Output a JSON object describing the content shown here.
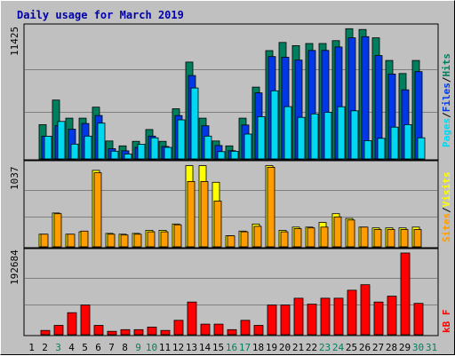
{
  "title": "Daily usage for March 2019",
  "colors": {
    "background": "#c0c0c0",
    "plot_background": "#c0c0c0",
    "hits": "#007f5f",
    "files": "#0038e8",
    "pages": "#00d7f0",
    "visits": "#ff9c00",
    "sites": "#ffff00",
    "kbytes": "#ff0000",
    "weekend_day": "#007f5f",
    "weekday": "#000000"
  },
  "chart_data": [
    {
      "type": "bar",
      "panel": "hits-files-pages",
      "max_label": "11425",
      "ymax": 11425,
      "categories": [
        "1",
        "2",
        "3",
        "4",
        "5",
        "6",
        "7",
        "8",
        "9",
        "10",
        "11",
        "12",
        "13",
        "14",
        "15",
        "16",
        "17",
        "18",
        "19",
        "20",
        "21",
        "22",
        "23",
        "24",
        "25",
        "26",
        "27",
        "28",
        "29",
        "30",
        "31"
      ],
      "series": [
        {
          "name": "Hits",
          "values": [
            0,
            3000,
            5150,
            3570,
            3570,
            4530,
            1570,
            1140,
            1540,
            2570,
            1540,
            4390,
            8480,
            3570,
            1570,
            1140,
            3570,
            6290,
            9480,
            10200,
            9920,
            10100,
            10100,
            10350,
            11400,
            11330,
            10600,
            8620,
            7480,
            8620,
            0
          ]
        },
        {
          "name": "Files",
          "values": [
            0,
            1990,
            2900,
            2600,
            3100,
            3800,
            890,
            710,
            1010,
            2000,
            1090,
            3790,
            7300,
            2900,
            1170,
            720,
            2970,
            5780,
            8960,
            8900,
            8650,
            9500,
            9500,
            9800,
            10600,
            10700,
            9050,
            7430,
            6050,
            7640,
            0
          ]
        },
        {
          "name": "Pages",
          "values": [
            0,
            1990,
            3280,
            1300,
            2000,
            3130,
            680,
            430,
            1280,
            1850,
            1010,
            3420,
            6210,
            2000,
            640,
            670,
            2180,
            3700,
            5960,
            4580,
            3640,
            3940,
            4080,
            4570,
            4210,
            1600,
            1800,
            2780,
            3000,
            1850,
            0
          ]
        }
      ],
      "legend": [
        "Pages",
        "Files",
        "Hits"
      ]
    },
    {
      "type": "bar",
      "panel": "visits-sites",
      "max_label": "1037",
      "ymax": 1037,
      "categories": [
        "1",
        "2",
        "3",
        "4",
        "5",
        "6",
        "7",
        "8",
        "9",
        "10",
        "11",
        "12",
        "13",
        "14",
        "15",
        "16",
        "17",
        "18",
        "19",
        "20",
        "21",
        "22",
        "23",
        "24",
        "25",
        "26",
        "27",
        "28",
        "29",
        "30",
        "31"
      ],
      "series": [
        {
          "name": "Visits",
          "values": [
            0,
            160,
            420,
            160,
            200,
            940,
            160,
            150,
            160,
            190,
            190,
            280,
            830,
            830,
            580,
            140,
            190,
            260,
            1010,
            190,
            230,
            240,
            250,
            380,
            340,
            250,
            220,
            220,
            220,
            220,
            0
          ]
        },
        {
          "name": "Sites",
          "values": [
            0,
            160,
            430,
            160,
            190,
            970,
            170,
            160,
            170,
            210,
            210,
            290,
            1030,
            1030,
            820,
            140,
            200,
            290,
            1030,
            210,
            250,
            250,
            310,
            420,
            360,
            250,
            240,
            240,
            240,
            250,
            0
          ]
        }
      ],
      "legend": [
        "Sites",
        "Visits"
      ]
    },
    {
      "type": "bar",
      "panel": "kbytes",
      "max_label": "192684",
      "ymax": 192684,
      "categories": [
        "1",
        "2",
        "3",
        "4",
        "5",
        "6",
        "7",
        "8",
        "9",
        "10",
        "11",
        "12",
        "13",
        "14",
        "15",
        "16",
        "17",
        "18",
        "19",
        "20",
        "21",
        "22",
        "23",
        "24",
        "25",
        "26",
        "27",
        "28",
        "29",
        "30",
        "31"
      ],
      "series": [
        {
          "name": "kB F",
          "values": [
            0,
            10000,
            22000,
            52000,
            70000,
            22000,
            8000,
            12000,
            12000,
            18000,
            10000,
            34000,
            77000,
            25000,
            25000,
            12000,
            34000,
            22000,
            70000,
            70000,
            86000,
            72000,
            86000,
            86000,
            105000,
            118000,
            77000,
            91000,
            192684,
            74000,
            0
          ]
        }
      ],
      "legend": [
        "kB F"
      ]
    }
  ],
  "x_axis": {
    "days": [
      "1",
      "2",
      "3",
      "4",
      "5",
      "6",
      "7",
      "8",
      "9",
      "10",
      "11",
      "12",
      "13",
      "14",
      "15",
      "16",
      "17",
      "18",
      "19",
      "20",
      "21",
      "22",
      "23",
      "24",
      "25",
      "26",
      "27",
      "28",
      "29",
      "30",
      "31"
    ],
    "weekend": [
      false,
      false,
      true,
      false,
      false,
      false,
      false,
      false,
      true,
      true,
      false,
      false,
      false,
      false,
      false,
      true,
      true,
      false,
      false,
      false,
      false,
      false,
      true,
      true,
      false,
      false,
      false,
      false,
      false,
      true,
      true
    ]
  }
}
